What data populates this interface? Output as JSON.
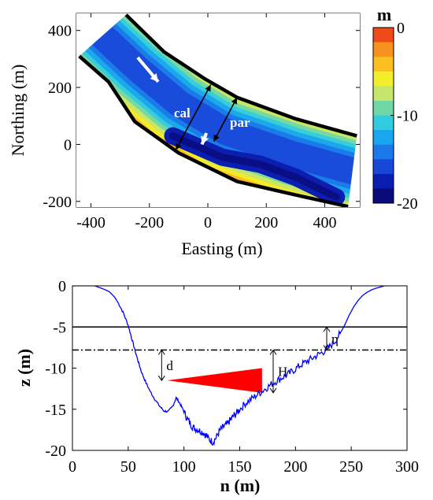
{
  "chart_data": [
    {
      "type": "heatmap",
      "xlabel": "Easting (m)",
      "ylabel": "Northing (m)",
      "xlim": [
        -450,
        520
      ],
      "ylim": [
        -220,
        460
      ],
      "xticks": [
        -400,
        -200,
        0,
        200,
        400
      ],
      "yticks": [
        -200,
        0,
        200,
        400
      ],
      "colorbar": {
        "label": "m",
        "range": [
          -20,
          0
        ],
        "ticks": [
          0,
          -10,
          -20
        ],
        "colors": [
          "#ef4a1a",
          "#f7921e",
          "#fbbf22",
          "#f2ee2a",
          "#c5e66a",
          "#6fd8a6",
          "#32cce0",
          "#1aa6ee",
          "#1a78e8",
          "#1948d8",
          "#0b1eb0",
          "#0a0a7a"
        ]
      },
      "bank_north": [
        [
          -280,
          455
        ],
        [
          -150,
          325
        ],
        [
          -10,
          230
        ],
        [
          100,
          165
        ],
        [
          300,
          90
        ],
        [
          510,
          30
        ]
      ],
      "bank_south": [
        [
          -440,
          310
        ],
        [
          -340,
          220
        ],
        [
          -250,
          80
        ],
        [
          -100,
          -30
        ],
        [
          100,
          -130
        ],
        [
          290,
          -175
        ],
        [
          480,
          -218
        ]
      ],
      "center_line": [
        [
          -360,
          380
        ],
        [
          -240,
          265
        ],
        [
          -100,
          145
        ],
        [
          60,
          45
        ],
        [
          290,
          -35
        ],
        [
          500,
          -95
        ]
      ],
      "deep_channel": [
        [
          -120,
          30
        ],
        [
          50,
          -45
        ],
        [
          180,
          -70
        ],
        [
          300,
          -115
        ],
        [
          440,
          -185
        ]
      ],
      "flow_arrows": [
        {
          "from": [
            -240,
            305
          ],
          "to": [
            -170,
            220
          ]
        },
        {
          "from": [
            -5,
            40
          ],
          "to": [
            -20,
            0
          ]
        }
      ],
      "section_lines": [
        {
          "label": "cal",
          "from": [
            10,
            210
          ],
          "to": [
            -110,
            -20
          ]
        },
        {
          "label": "par",
          "from": [
            100,
            165
          ],
          "to": [
            20,
            10
          ]
        }
      ]
    },
    {
      "type": "line",
      "xlabel": "n (m)",
      "ylabel": "z (m)",
      "xlim": [
        0,
        300
      ],
      "ylim": [
        -20,
        0
      ],
      "xticks": [
        0,
        50,
        100,
        150,
        200,
        250,
        300
      ],
      "yticks": [
        0,
        -5,
        -10,
        -15,
        -20
      ],
      "series": [
        {
          "color": "#0000ff",
          "x": [
            0,
            20,
            28,
            33,
            38,
            42,
            46,
            50,
            53,
            56,
            59,
            62,
            66,
            70,
            74,
            78,
            82,
            86,
            90,
            93,
            96,
            99,
            102,
            105,
            108,
            111,
            114,
            117,
            120,
            123,
            126,
            129,
            132,
            135,
            138,
            141,
            144,
            147,
            150,
            155,
            160,
            165,
            170,
            175,
            180,
            185,
            190,
            195,
            200,
            205,
            210,
            215,
            220,
            225,
            230,
            235,
            240,
            244,
            248,
            252,
            256,
            260,
            264,
            268,
            272,
            276,
            280,
            283
          ],
          "y": [
            0,
            0,
            -0.4,
            -0.7,
            -1.4,
            -2.3,
            -3.4,
            -4.8,
            -6.3,
            -7.8,
            -9.2,
            -10.5,
            -11.8,
            -12.9,
            -13.8,
            -14.6,
            -15.2,
            -15.3,
            -14.6,
            -13.6,
            -14.2,
            -15.0,
            -15.9,
            -16.6,
            -17.2,
            -17.4,
            -17.6,
            -17.8,
            -18.2,
            -18.7,
            -19.0,
            -18.4,
            -17.6,
            -17.2,
            -16.9,
            -16.4,
            -15.9,
            -15.5,
            -15.0,
            -14.3,
            -13.8,
            -13.3,
            -12.8,
            -12.3,
            -11.8,
            -11.4,
            -11.0,
            -10.6,
            -10.1,
            -9.6,
            -9.2,
            -8.8,
            -8.4,
            -8.0,
            -7.5,
            -6.8,
            -5.8,
            -4.8,
            -3.6,
            -2.6,
            -1.8,
            -1.2,
            -0.8,
            -0.5,
            -0.3,
            -0.15,
            0,
            0
          ]
        }
      ],
      "hlines": [
        {
          "y": -5,
          "style": "solid"
        },
        {
          "y": -7.8,
          "style": "dashdot"
        }
      ],
      "wedge": {
        "color": "#ff0000",
        "x_start": 85,
        "x_end": 170,
        "y_tip": -11.5,
        "y_top": -10.0,
        "y_bottom": -13.0
      },
      "annotations": [
        {
          "label": "d",
          "x": 80,
          "y_from": -7.8,
          "y_to": -11.5
        },
        {
          "label": "H",
          "x": 180,
          "y_from": -7.8,
          "y_to": -13.0
        },
        {
          "label": "η",
          "x": 228,
          "y_from": -7.8,
          "y_to": -5
        }
      ]
    }
  ]
}
